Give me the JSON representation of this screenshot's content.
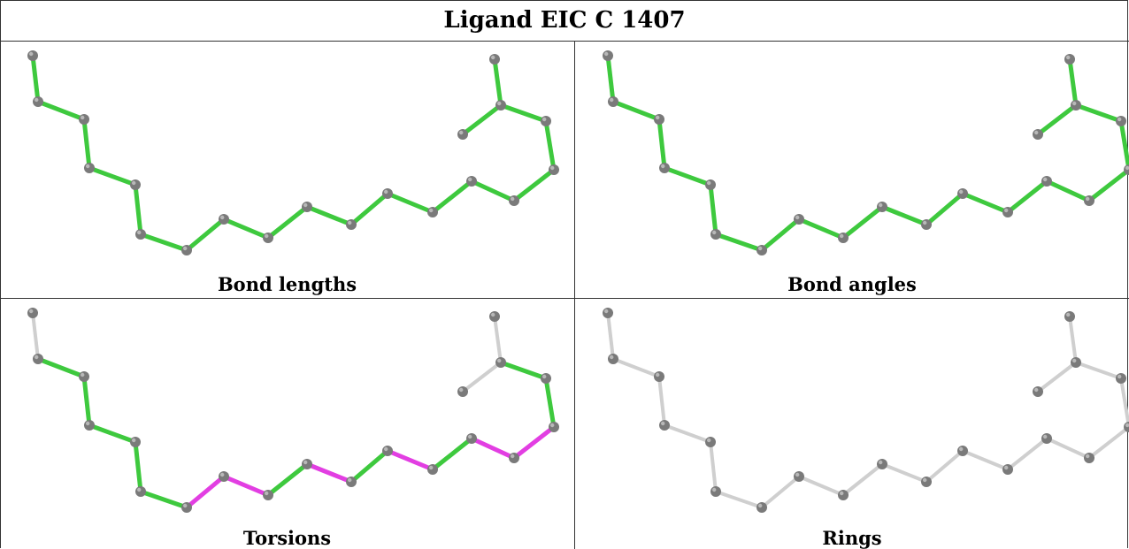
{
  "title": "Ligand EIC C 1407",
  "colors": {
    "green": "#3ec93e",
    "magenta": "#e23ee2",
    "grey_bond": "#cfcfcf",
    "atom": "#7a7a7a"
  },
  "panels": [
    {
      "caption": "Bond lengths",
      "bond_styles": [
        "g",
        "g",
        "g",
        "g",
        "g",
        "g",
        "g",
        "g",
        "g",
        "g",
        "g",
        "g",
        "g",
        "g",
        "g",
        "g",
        "g",
        "g"
      ]
    },
    {
      "caption": "Bond angles",
      "bond_styles": [
        "g",
        "g",
        "g",
        "g",
        "g",
        "g",
        "g",
        "g",
        "g",
        "g",
        "g",
        "g",
        "g",
        "g",
        "g",
        "g",
        "g",
        "g"
      ]
    },
    {
      "caption": "Torsions",
      "bond_styles": [
        "w",
        "g",
        "g",
        "g",
        "g",
        "g",
        "m",
        "m",
        "g",
        "m",
        "g",
        "m",
        "g",
        "m",
        "m",
        "g",
        "g",
        "w"
      ]
    },
    {
      "caption": "Rings",
      "bond_styles": [
        "w",
        "w",
        "w",
        "w",
        "w",
        "w",
        "w",
        "w",
        "w",
        "w",
        "w",
        "w",
        "w",
        "w",
        "w",
        "w",
        "w",
        "w"
      ]
    }
  ]
}
